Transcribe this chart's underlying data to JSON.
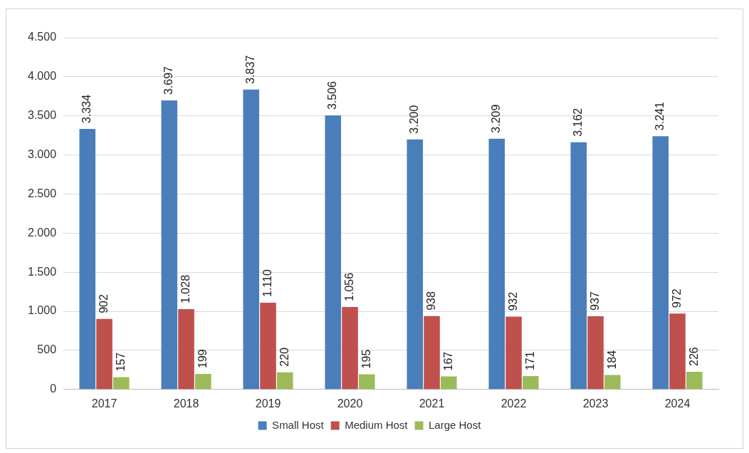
{
  "chart_data": {
    "type": "bar",
    "categories": [
      "2017",
      "2018",
      "2019",
      "2020",
      "2021",
      "2022",
      "2023",
      "2024"
    ],
    "series": [
      {
        "name": "Small Host",
        "color": "#4a7ebb",
        "values": [
          3334,
          3697,
          3837,
          3506,
          3200,
          3209,
          3162,
          3241
        ],
        "value_labels": [
          "3.334",
          "3.697",
          "3.837",
          "3.506",
          "3.200",
          "3.209",
          "3.162",
          "3.241"
        ]
      },
      {
        "name": "Medium Host",
        "color": "#c0504d",
        "values": [
          902,
          1028,
          1110,
          1056,
          938,
          932,
          937,
          972
        ],
        "value_labels": [
          "902",
          "1.028",
          "1.110",
          "1.056",
          "938",
          "932",
          "937",
          "972"
        ]
      },
      {
        "name": "Large Host",
        "color": "#9bbb59",
        "values": [
          157,
          199,
          220,
          195,
          167,
          171,
          184,
          226
        ],
        "value_labels": [
          "157",
          "199",
          "220",
          "195",
          "167",
          "171",
          "184",
          "226"
        ]
      }
    ],
    "ylim": [
      0,
      4500
    ],
    "yticks": [
      0,
      {
        "value": 500,
        "label": "500"
      },
      {
        "value": 1000,
        "label": "1.000"
      },
      {
        "value": 1500,
        "label": "1.500"
      },
      {
        "value": 2000,
        "label": "2.000"
      },
      {
        "value": 2500,
        "label": "2.500"
      },
      {
        "value": 3000,
        "label": "3.000"
      },
      {
        "value": 3500,
        "label": "3.500"
      },
      {
        "value": 4000,
        "label": "4.000"
      },
      {
        "value": 4500,
        "label": "4.500"
      }
    ],
    "grid": "y",
    "legend": "bottom"
  }
}
